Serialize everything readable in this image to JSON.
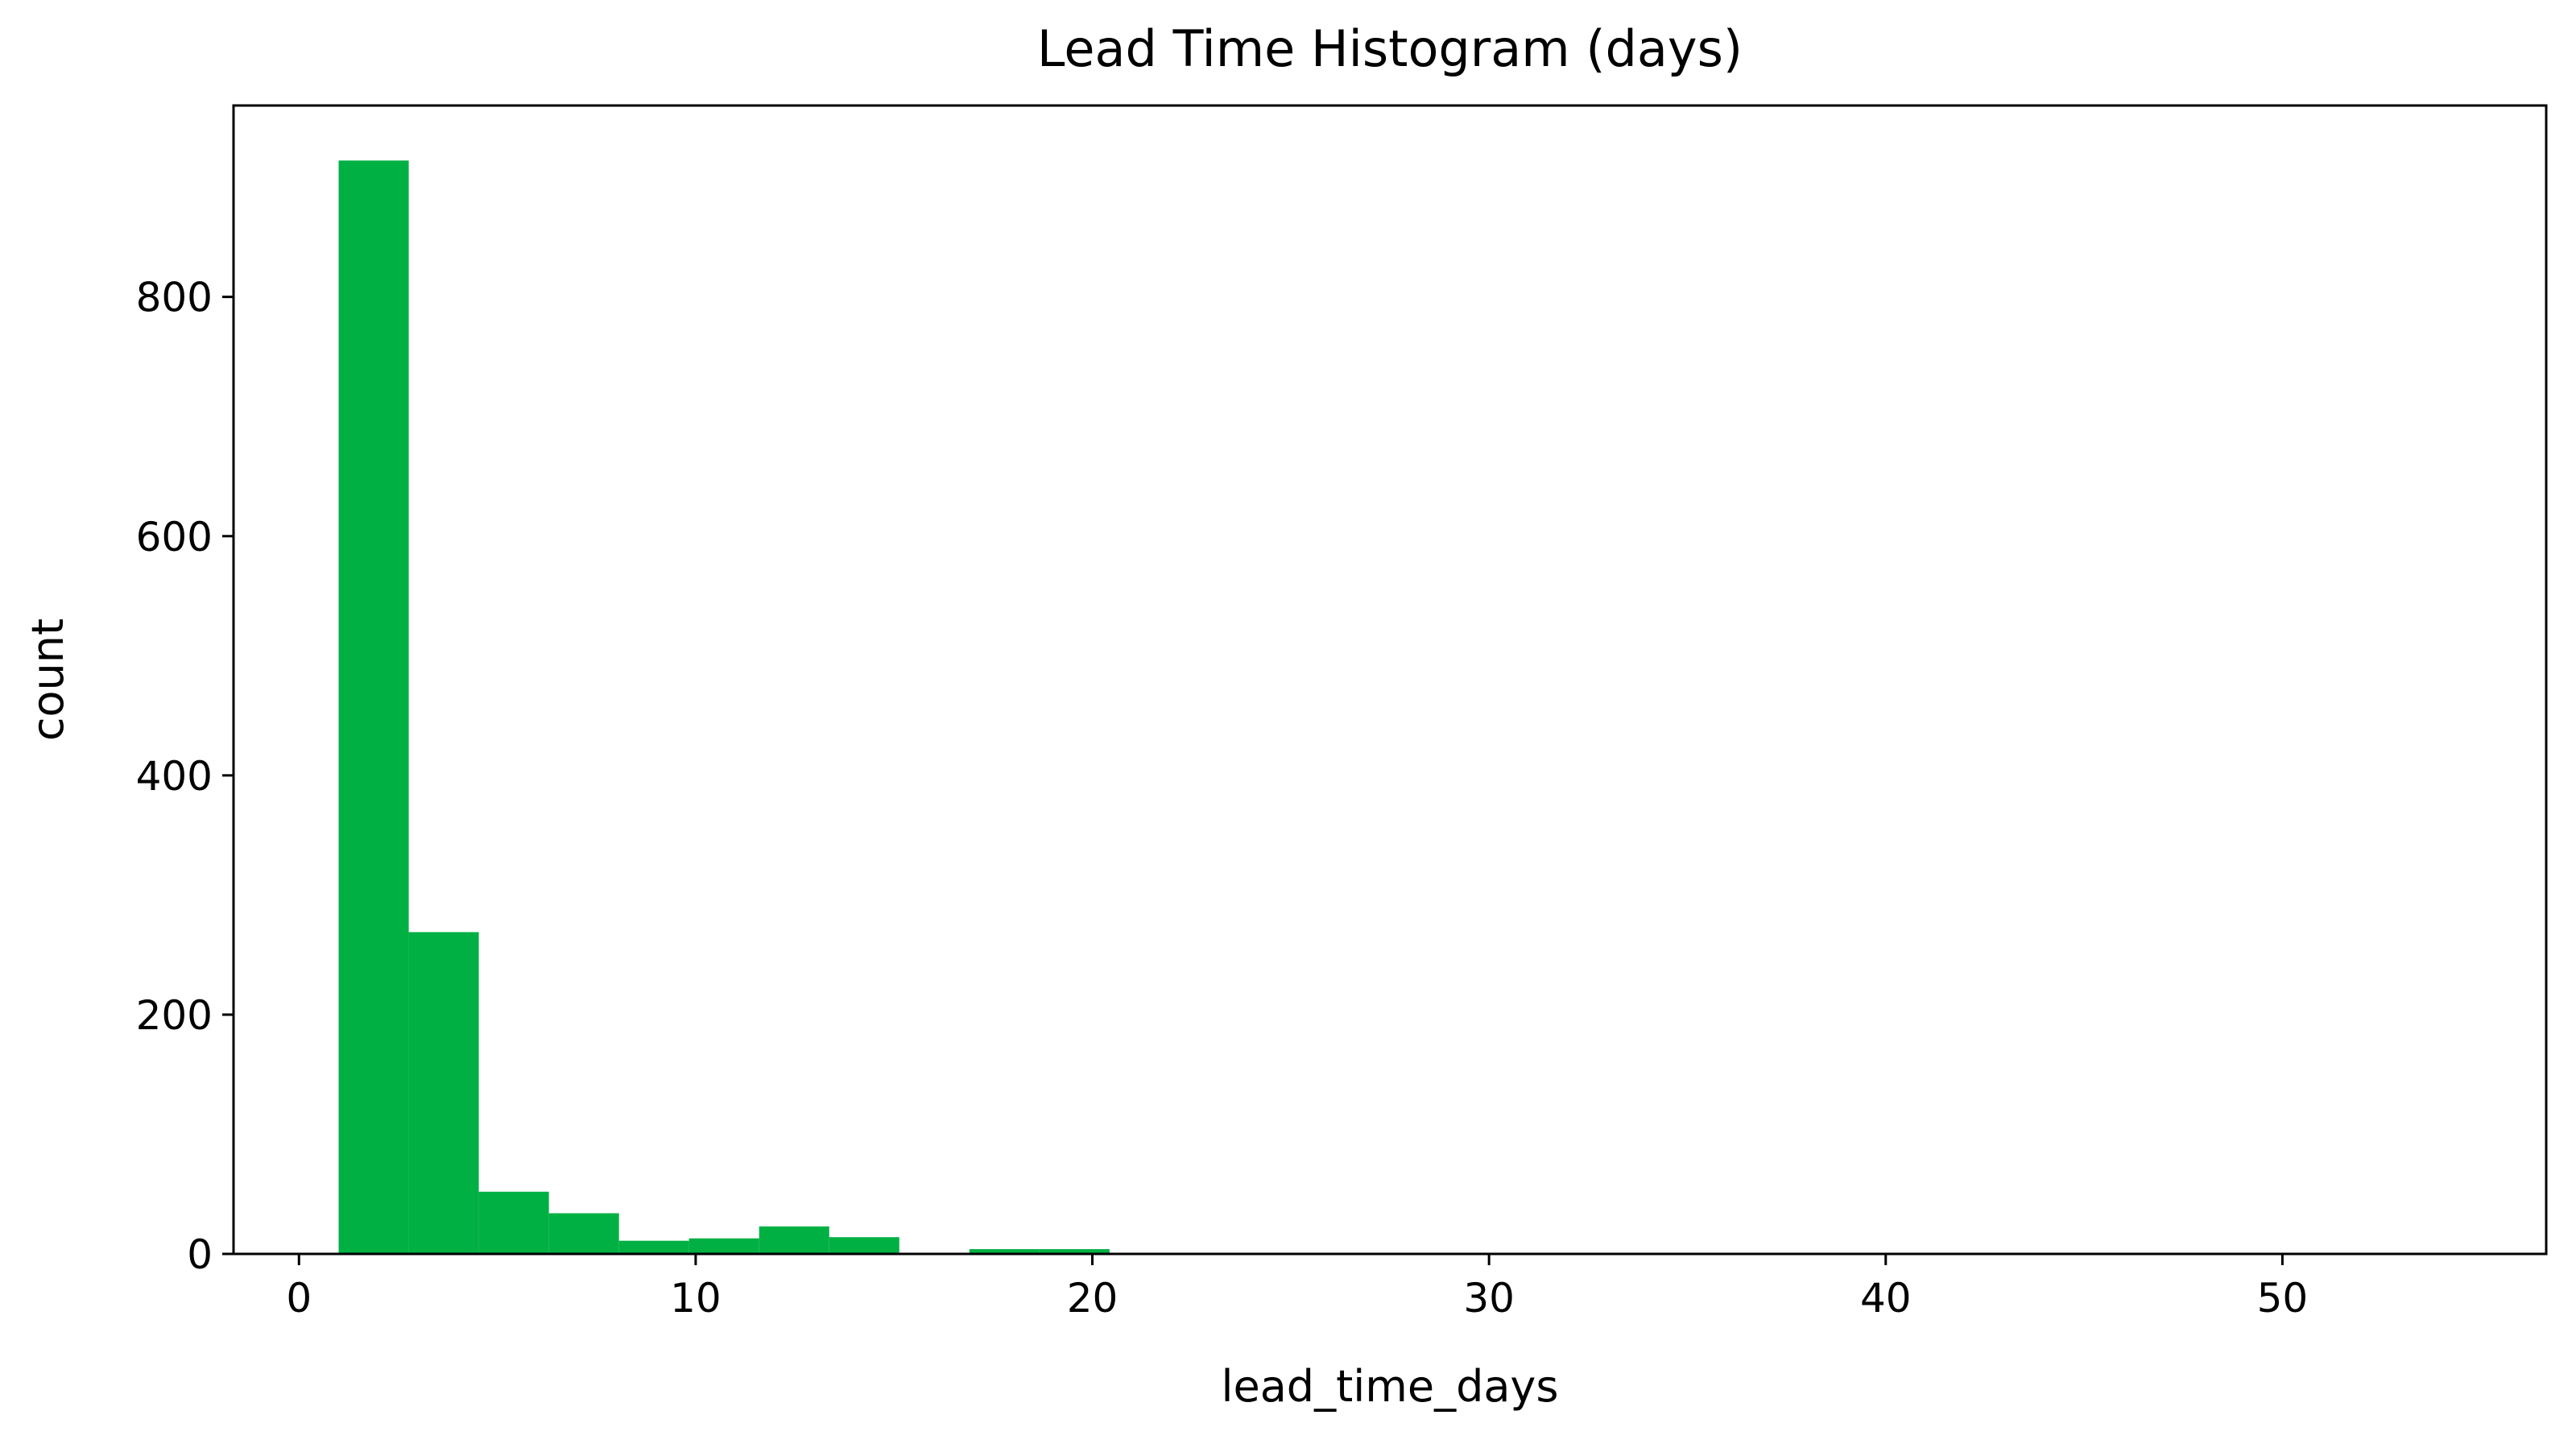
{
  "chart_data": {
    "type": "histogram",
    "title": "Lead Time Histogram (days)",
    "x_label": "lead_time_days",
    "y_label": "count",
    "bins": [
      1,
      2.767,
      4.533,
      6.3,
      8.067,
      9.833,
      11.6,
      13.367,
      15.133,
      16.9,
      18.667,
      20.433,
      22.2,
      23.967,
      25.733,
      27.5,
      29.267,
      31.033,
      32.8,
      34.567,
      36.333,
      38.1,
      39.867,
      41.633,
      43.4,
      45.167,
      46.933,
      48.7,
      50.467,
      52.233,
      54
    ],
    "values": [
      914,
      269,
      52,
      34,
      11,
      13,
      23,
      14,
      1,
      4,
      4,
      1,
      1,
      1,
      1,
      1,
      0,
      0,
      1,
      0,
      0,
      0,
      0,
      0,
      0,
      0,
      0,
      0,
      0,
      1
    ],
    "color": "#00b043",
    "xlim": [
      -1.65,
      56.65
    ],
    "ylim": [
      0,
      960
    ],
    "xticks": [
      0,
      10,
      20,
      30,
      40,
      50
    ],
    "yticks": [
      0,
      200,
      400,
      600,
      800
    ]
  }
}
